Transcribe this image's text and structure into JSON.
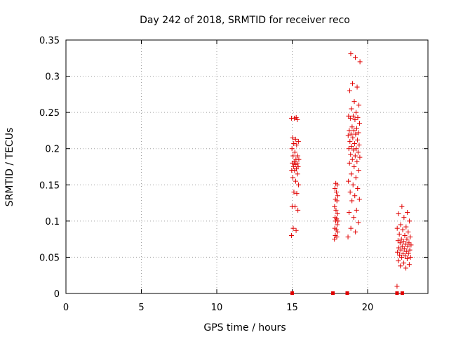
{
  "chart_data": {
    "type": "scatter",
    "title": "Day 242 of 2018, SRMTID for receiver reco",
    "xlabel": "GPS time / hours",
    "ylabel": "SRMTID / TECUs",
    "xlim": [
      0,
      24
    ],
    "ylim": [
      0,
      0.35
    ],
    "xticks": [
      0,
      5,
      10,
      15,
      20
    ],
    "yticks": [
      0,
      0.05,
      0.1,
      0.15,
      0.2,
      0.25,
      0.3,
      0.35
    ],
    "ytick_labels": [
      "0",
      "0.05",
      "0.1",
      "0.15",
      "0.2",
      "0.25",
      "0.3",
      "0.35"
    ],
    "grid": true,
    "marker": "plus",
    "color": "#e00000",
    "zero_markers": [
      {
        "x": 15.0,
        "y": 0
      },
      {
        "x": 17.7,
        "y": 0
      },
      {
        "x": 18.65,
        "y": 0
      },
      {
        "x": 21.95,
        "y": 0
      },
      {
        "x": 22.3,
        "y": 0
      }
    ],
    "clusters": [
      {
        "x_range": [
          14.95,
          15.45
        ],
        "y_values": [
          0.08,
          0.087,
          0.09,
          0.115,
          0.12,
          0.12,
          0.138,
          0.14,
          0.15,
          0.155,
          0.16,
          0.165,
          0.17,
          0.17,
          0.172,
          0.175,
          0.175,
          0.178,
          0.18,
          0.18,
          0.182,
          0.185,
          0.185,
          0.19,
          0.19,
          0.195,
          0.2,
          0.205,
          0.207,
          0.21,
          0.213,
          0.215,
          0.24,
          0.242,
          0.242,
          0.243
        ]
      },
      {
        "x_range": [
          17.8,
          18.05
        ],
        "y_values": [
          0.075,
          0.078,
          0.08,
          0.085,
          0.088,
          0.09,
          0.095,
          0.1,
          0.1,
          0.103,
          0.105,
          0.11,
          0.115,
          0.12,
          0.128,
          0.13,
          0.135,
          0.14,
          0.145,
          0.15,
          0.152
        ]
      },
      {
        "x_range": [
          18.7,
          19.5
        ],
        "y_values": [
          0.078,
          0.085,
          0.09,
          0.098,
          0.105,
          0.112,
          0.115,
          0.128,
          0.13,
          0.135,
          0.14,
          0.145,
          0.15,
          0.155,
          0.16,
          0.165,
          0.17,
          0.175,
          0.18,
          0.182,
          0.185,
          0.188,
          0.19,
          0.192,
          0.195,
          0.198,
          0.2,
          0.2,
          0.203,
          0.205,
          0.207,
          0.21,
          0.212,
          0.215,
          0.218,
          0.22,
          0.22,
          0.222,
          0.225,
          0.225,
          0.228,
          0.23,
          0.235,
          0.24,
          0.242,
          0.243,
          0.245,
          0.245,
          0.25,
          0.255,
          0.26,
          0.265,
          0.28,
          0.285,
          0.29,
          0.32,
          0.326,
          0.331
        ]
      },
      {
        "x_range": [
          21.95,
          22.9
        ],
        "y_values": [
          0.01,
          0.035,
          0.038,
          0.04,
          0.042,
          0.045,
          0.048,
          0.05,
          0.05,
          0.052,
          0.053,
          0.055,
          0.055,
          0.057,
          0.058,
          0.06,
          0.06,
          0.062,
          0.063,
          0.065,
          0.065,
          0.067,
          0.068,
          0.07,
          0.07,
          0.072,
          0.073,
          0.075,
          0.075,
          0.078,
          0.08,
          0.082,
          0.085,
          0.088,
          0.09,
          0.092,
          0.095,
          0.1,
          0.105,
          0.11,
          0.112,
          0.12
        ]
      }
    ]
  }
}
